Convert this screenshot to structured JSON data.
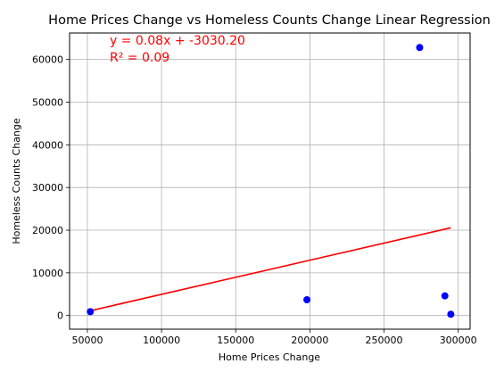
{
  "chart_data": {
    "type": "scatter",
    "title": "Home Prices Change vs Homeless Counts Change Linear Regression",
    "xlabel": "Home Prices Change",
    "ylabel": "Homeless Counts Change",
    "xlim": [
      38000,
      308000
    ],
    "ylim": [
      -3200,
      66200
    ],
    "xticks": [
      50000,
      100000,
      150000,
      200000,
      250000,
      300000
    ],
    "yticks": [
      0,
      10000,
      20000,
      30000,
      40000,
      50000,
      60000
    ],
    "grid": true,
    "points": [
      {
        "x": 52000,
        "y": 900
      },
      {
        "x": 198000,
        "y": 3700
      },
      {
        "x": 274000,
        "y": 62800
      },
      {
        "x": 291000,
        "y": 4600
      },
      {
        "x": 295000,
        "y": 300
      }
    ],
    "regression": {
      "slope": 0.08,
      "intercept": -3030.2,
      "x_range": [
        52000,
        295000
      ],
      "equation_label": "y = 0.08x + -3030.20",
      "r2_label": "R² = 0.09"
    },
    "colors": {
      "points": "#0000ff",
      "line": "#ff0000",
      "annotation": "#ff0000",
      "grid": "#b0b0b0",
      "axes": "#000000",
      "text": "#000000"
    }
  }
}
